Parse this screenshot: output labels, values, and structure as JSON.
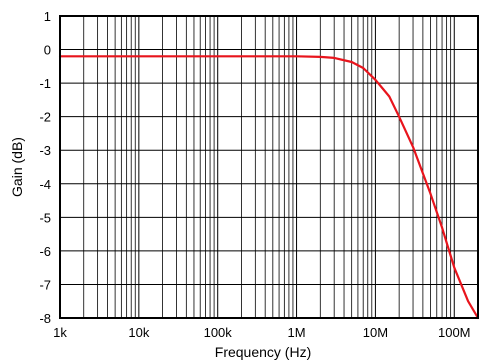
{
  "chart_data": {
    "type": "line",
    "title": "",
    "xlabel": "Frequency (Hz)",
    "ylabel": "Gain (dB)",
    "x_scale": "log",
    "xlim": [
      1000,
      200000000
    ],
    "ylim": [
      -8,
      1
    ],
    "grid": true,
    "legend": "none",
    "x_ticks": [
      {
        "value": 1000,
        "label": "1k"
      },
      {
        "value": 10000,
        "label": "10k"
      },
      {
        "value": 100000,
        "label": "100k"
      },
      {
        "value": 1000000,
        "label": "1M"
      },
      {
        "value": 10000000,
        "label": "10M"
      },
      {
        "value": 100000000,
        "label": "100M"
      }
    ],
    "y_ticks": [
      {
        "value": 1,
        "label": "1"
      },
      {
        "value": 0,
        "label": "0"
      },
      {
        "value": -1,
        "label": "-1"
      },
      {
        "value": -2,
        "label": "-2"
      },
      {
        "value": -3,
        "label": "-3"
      },
      {
        "value": -4,
        "label": "-4"
      },
      {
        "value": -5,
        "label": "-5"
      },
      {
        "value": -6,
        "label": "-6"
      },
      {
        "value": -7,
        "label": "-7"
      },
      {
        "value": -8,
        "label": "-8"
      }
    ],
    "series": [
      {
        "color": "#e8141c",
        "x": [
          1000,
          10000,
          100000,
          1000000,
          2000000,
          3000000,
          5000000,
          7000000,
          10000000,
          15000000,
          20000000,
          30000000,
          50000000,
          70000000,
          100000000,
          150000000,
          200000000
        ],
        "y": [
          -0.2,
          -0.2,
          -0.2,
          -0.2,
          -0.22,
          -0.25,
          -0.37,
          -0.55,
          -0.9,
          -1.4,
          -2.0,
          -2.9,
          -4.3,
          -5.3,
          -6.5,
          -7.5,
          -8.0
        ]
      }
    ]
  },
  "colors": {
    "grid": "#000000",
    "frame": "#000000",
    "line": "#e8141c"
  }
}
